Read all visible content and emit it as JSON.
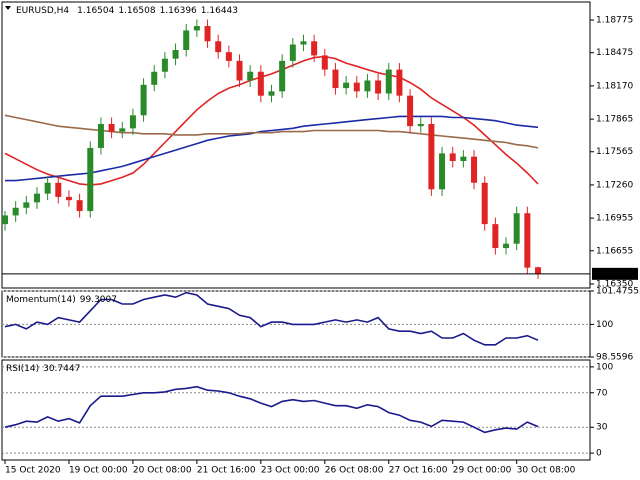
{
  "chart_data": [
    {
      "type": "candlestick",
      "title": "EURUSD,H4",
      "categories": [
        "15 Oct 2020",
        null,
        null,
        null,
        null,
        null,
        "19 Oct 00:00",
        null,
        null,
        null,
        null,
        null,
        "20 Oct 08:00",
        null,
        null,
        null,
        null,
        null,
        "21 Oct 16:00",
        null,
        null,
        null,
        null,
        null,
        "23 Oct 00:00",
        null,
        null,
        null,
        null,
        null,
        "26 Oct 08:00",
        null,
        null,
        null,
        null,
        null,
        "27 Oct 16:00",
        null,
        null,
        null,
        null,
        null,
        "29 Oct 00:00",
        null,
        null,
        null,
        null,
        null,
        "30 Oct 08:00",
        null,
        null
      ],
      "open": [
        1.169,
        1.1698,
        1.1705,
        1.171,
        1.1718,
        1.1728,
        1.1715,
        1.1712,
        1.1702,
        1.176,
        1.1782,
        1.1775,
        1.1778,
        1.179,
        1.1818,
        1.183,
        1.1842,
        1.185,
        1.1868,
        1.1872,
        1.1858,
        1.1848,
        1.184,
        1.1822,
        1.183,
        1.1808,
        1.1812,
        1.184,
        1.1855,
        1.1858,
        1.1845,
        1.1832,
        1.1815,
        1.182,
        1.1812,
        1.1822,
        1.181,
        1.1832,
        1.1808,
        1.178,
        1.1782,
        1.1722,
        1.1755,
        1.1748,
        1.1752,
        1.1728,
        1.169,
        1.1668,
        1.1672,
        1.17,
        1.16504
      ],
      "high": [
        1.1702,
        1.1711,
        1.1716,
        1.1724,
        1.1734,
        1.1734,
        1.1721,
        1.1718,
        1.1766,
        1.1788,
        1.1788,
        1.1784,
        1.1796,
        1.1824,
        1.1836,
        1.1848,
        1.1856,
        1.1874,
        1.1878,
        1.1878,
        1.1864,
        1.1854,
        1.1846,
        1.1836,
        1.1836,
        1.1818,
        1.1846,
        1.1861,
        1.1864,
        1.1864,
        1.1851,
        1.1838,
        1.1826,
        1.1826,
        1.1828,
        1.1828,
        1.1838,
        1.1838,
        1.1814,
        1.1788,
        1.1788,
        1.1761,
        1.1761,
        1.1758,
        1.1758,
        1.1734,
        1.1696,
        1.1678,
        1.1706,
        1.1706,
        1.16508
      ],
      "low": [
        1.1684,
        1.1692,
        1.1699,
        1.1704,
        1.1712,
        1.1709,
        1.1706,
        1.1696,
        1.1696,
        1.1754,
        1.1769,
        1.1769,
        1.1772,
        1.1784,
        1.1812,
        1.1824,
        1.1836,
        1.1844,
        1.1862,
        1.1852,
        1.1842,
        1.1834,
        1.1816,
        1.1816,
        1.1802,
        1.1802,
        1.1806,
        1.1834,
        1.1849,
        1.1839,
        1.1826,
        1.1809,
        1.1809,
        1.1806,
        1.1806,
        1.1804,
        1.1804,
        1.1802,
        1.1774,
        1.1774,
        1.1716,
        1.1716,
        1.1742,
        1.1742,
        1.1722,
        1.1684,
        1.1662,
        1.1662,
        1.1666,
        1.1644,
        1.16396
      ],
      "close": [
        1.1698,
        1.1705,
        1.171,
        1.1718,
        1.1728,
        1.1715,
        1.1712,
        1.1702,
        1.176,
        1.1782,
        1.1775,
        1.1778,
        1.179,
        1.1818,
        1.183,
        1.1842,
        1.185,
        1.1868,
        1.1872,
        1.1858,
        1.1848,
        1.184,
        1.1822,
        1.183,
        1.1808,
        1.1812,
        1.184,
        1.1855,
        1.1858,
        1.1845,
        1.1832,
        1.1815,
        1.182,
        1.1812,
        1.1822,
        1.181,
        1.1832,
        1.1808,
        1.178,
        1.1782,
        1.1722,
        1.1755,
        1.1748,
        1.1752,
        1.1728,
        1.169,
        1.1668,
        1.1672,
        1.17,
        1.165,
        1.16443
      ],
      "up_color": "#2a8a2a",
      "down_color": "#e02424",
      "overlays": [
        {
          "color": "#e02424",
          "values": [
            1.1755,
            1.175,
            1.1745,
            1.174,
            1.1736,
            1.1733,
            1.173,
            1.1727,
            1.1726,
            1.1727,
            1.173,
            1.1733,
            1.1737,
            1.1745,
            1.1755,
            1.1765,
            1.1775,
            1.1785,
            1.1795,
            1.1803,
            1.181,
            1.1815,
            1.1818,
            1.1822,
            1.1825,
            1.1828,
            1.1832,
            1.1836,
            1.184,
            1.1843,
            1.1844,
            1.1842,
            1.1838,
            1.1835,
            1.1832,
            1.1829,
            1.1827,
            1.1825,
            1.182,
            1.1814,
            1.1806,
            1.18,
            1.1794,
            1.1788,
            1.1781,
            1.1772,
            1.1763,
            1.1754,
            1.1746,
            1.1737,
            1.1727
          ]
        },
        {
          "color": "#1c2aa8",
          "values": [
            1.173,
            1.173,
            1.1731,
            1.1732,
            1.1733,
            1.1734,
            1.1735,
            1.1736,
            1.1737,
            1.1739,
            1.1741,
            1.1743,
            1.1746,
            1.1749,
            1.1752,
            1.1755,
            1.1758,
            1.1761,
            1.1764,
            1.1767,
            1.1769,
            1.1771,
            1.1772,
            1.1773,
            1.1775,
            1.1776,
            1.1777,
            1.1778,
            1.178,
            1.1781,
            1.1782,
            1.1783,
            1.1784,
            1.1785,
            1.1786,
            1.1787,
            1.1788,
            1.1789,
            1.1789,
            1.1789,
            1.1789,
            1.1789,
            1.1788,
            1.1788,
            1.1787,
            1.1786,
            1.1785,
            1.1783,
            1.1781,
            1.178,
            1.1779
          ]
        },
        {
          "color": "#9a6a4a",
          "values": [
            1.179,
            1.1788,
            1.1786,
            1.1784,
            1.1782,
            1.178,
            1.1779,
            1.1778,
            1.1777,
            1.1776,
            1.1775,
            1.1774,
            1.1774,
            1.1773,
            1.1773,
            1.1773,
            1.1772,
            1.1772,
            1.1772,
            1.1773,
            1.1773,
            1.1773,
            1.1773,
            1.1774,
            1.1774,
            1.1774,
            1.1775,
            1.1775,
            1.1775,
            1.1776,
            1.1776,
            1.1776,
            1.1776,
            1.1776,
            1.1776,
            1.1776,
            1.1775,
            1.1775,
            1.1774,
            1.1773,
            1.1772,
            1.1771,
            1.177,
            1.1769,
            1.1768,
            1.1767,
            1.1766,
            1.1765,
            1.1763,
            1.1762,
            1.176
          ]
        }
      ],
      "ylim": [
        1.16313,
        1.18941
      ],
      "yticks": [
        1.18775,
        1.18475,
        {
          "value": 1.1817,
          "label": "1.18170"
        },
        1.17865,
        1.17565,
        {
          "value": 1.1726,
          "label": "1.17260"
        },
        1.16955,
        1.16655,
        {
          "value": 1.1635,
          "label": "1.16350"
        }
      ]
    },
    {
      "type": "line",
      "title": "Momentum(14)",
      "color": "#1a1a8c",
      "values": [
        99.9,
        100.0,
        99.8,
        100.1,
        100.0,
        100.3,
        100.2,
        100.1,
        100.6,
        101.1,
        101.1,
        100.9,
        100.9,
        101.1,
        101.2,
        101.3,
        101.2,
        101.4,
        101.3,
        100.9,
        100.8,
        100.7,
        100.4,
        100.3,
        99.9,
        100.1,
        100.1,
        100.0,
        100.0,
        100.0,
        100.1,
        100.2,
        100.1,
        100.2,
        100.1,
        100.3,
        99.8,
        99.7,
        99.7,
        99.6,
        99.7,
        99.4,
        99.4,
        99.6,
        99.3,
        99.1,
        99.1,
        99.4,
        99.4,
        99.5,
        99.3007
      ],
      "ylim": [
        98.5596,
        101.4755
      ],
      "yticks": [
        101.4755,
        100,
        98.5596
      ],
      "grid": "dashed"
    },
    {
      "type": "line",
      "title": "RSI(14)",
      "color": "#1a1a8c",
      "values": [
        30,
        33,
        37,
        36,
        42,
        37,
        40,
        35,
        55,
        66,
        66,
        66,
        68,
        70,
        70,
        71,
        74,
        75,
        77,
        73,
        72,
        70,
        66,
        63,
        58,
        54,
        60,
        62,
        60,
        61,
        58,
        55,
        55,
        52,
        56,
        54,
        47,
        44,
        38,
        36,
        31,
        38,
        37,
        36,
        30,
        24,
        27,
        29,
        28,
        36,
        30.7447
      ],
      "ylim": [
        -8,
        108
      ],
      "yticks": [
        100,
        70,
        30,
        0
      ],
      "grid": "dashed"
    }
  ]
}
